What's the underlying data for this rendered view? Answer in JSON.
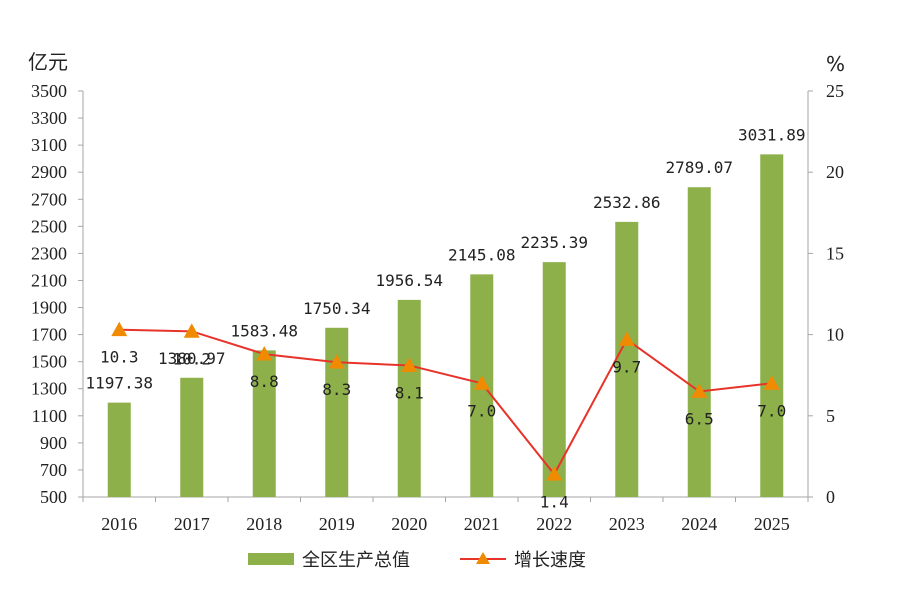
{
  "chart_data": {
    "type": "bar",
    "categories": [
      "2016",
      "2017",
      "2018",
      "2019",
      "2020",
      "2021",
      "2022",
      "2023",
      "2024",
      "2025"
    ],
    "series": [
      {
        "name": "全区生产总值",
        "type": "bar",
        "axis": "left",
        "values": [
          1197.38,
          1380.97,
          1583.48,
          1750.34,
          1956.54,
          2145.08,
          2235.39,
          2532.86,
          2789.07,
          3031.89
        ],
        "labels": [
          "1197.38",
          "1380.97",
          "1583.48",
          "1750.34",
          "1956.54",
          "2145.08",
          "2235.39",
          "2532.86",
          "2789.07",
          "3031.89"
        ]
      },
      {
        "name": "增长速度",
        "type": "line",
        "axis": "right",
        "values": [
          10.3,
          10.2,
          8.8,
          8.3,
          8.1,
          7.0,
          1.4,
          9.7,
          6.5,
          7.0
        ],
        "labels": [
          "10.3",
          "10.2",
          "8.8",
          "8.3",
          "8.1",
          "7.0",
          "1.4",
          "9.7",
          "6.5",
          "7.0"
        ]
      }
    ],
    "y_left": {
      "unit": "亿元",
      "ylim": [
        500,
        3500
      ],
      "ticks": [
        "500",
        "700",
        "900",
        "1100",
        "1300",
        "1500",
        "1700",
        "1900",
        "2100",
        "2300",
        "2500",
        "2700",
        "2900",
        "3100",
        "3300",
        "3500"
      ]
    },
    "y_right": {
      "unit": "%",
      "ylim": [
        0,
        25
      ],
      "ticks": [
        "0",
        "5",
        "10",
        "15",
        "20",
        "25"
      ]
    },
    "legend_placement": "bottom",
    "grid": false,
    "colors": {
      "bar": "#8db04a",
      "line": "#e8332a",
      "marker": "#f08a00",
      "axis": "#a6a6a6"
    }
  }
}
